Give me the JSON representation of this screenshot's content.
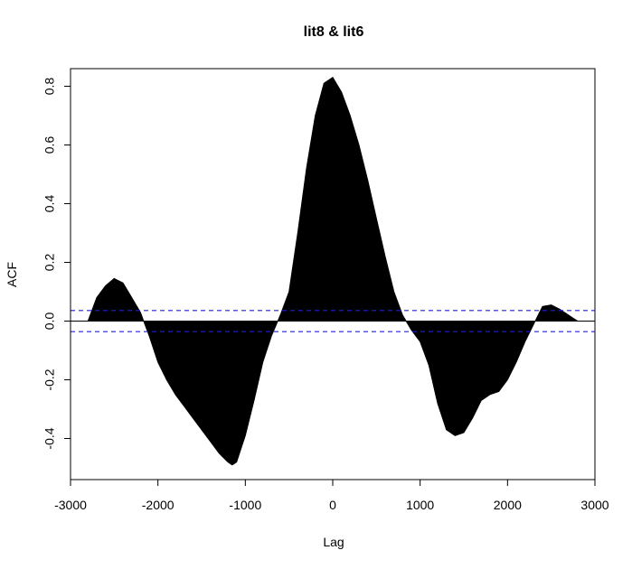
{
  "chart_data": {
    "type": "area",
    "title": "lit8 & lit6",
    "xlabel": "Lag",
    "ylabel": "ACF",
    "xlim": [
      -3000,
      3000
    ],
    "ylim": [
      -0.54,
      0.86
    ],
    "x_ticks": [
      -3000,
      -2000,
      -1000,
      0,
      1000,
      2000,
      3000
    ],
    "x_tick_labels": [
      "-3000",
      "-2000",
      "-1000",
      "0",
      "1000",
      "2000",
      "3000"
    ],
    "y_ticks": [
      -0.4,
      -0.2,
      0.0,
      0.2,
      0.4,
      0.6,
      0.8
    ],
    "y_tick_labels": [
      "-0.4",
      "-0.2",
      "0.0",
      "0.2",
      "0.4",
      "0.6",
      "0.8"
    ],
    "confidence_bounds": [
      0.036,
      -0.036
    ],
    "lag_range": [
      -2800,
      2800
    ],
    "series": [
      {
        "x": [
          -2800,
          -2700,
          -2600,
          -2500,
          -2400,
          -2300,
          -2200,
          -2100,
          -2000,
          -1900,
          -1800,
          -1700,
          -1600,
          -1500,
          -1400,
          -1300,
          -1200,
          -1150,
          -1100,
          -1000,
          -900,
          -800,
          -700,
          -600,
          -500,
          -400,
          -300,
          -200,
          -100,
          0,
          100,
          200,
          300,
          400,
          500,
          600,
          700,
          800,
          900,
          1000,
          1100,
          1200,
          1300,
          1400,
          1500,
          1600,
          1700,
          1800,
          1900,
          2000,
          2100,
          2200,
          2300,
          2400,
          2500,
          2600,
          2700,
          2800
        ],
        "y": [
          0.0,
          0.08,
          0.12,
          0.145,
          0.13,
          0.08,
          0.03,
          -0.05,
          -0.14,
          -0.2,
          -0.25,
          -0.29,
          -0.33,
          -0.37,
          -0.41,
          -0.45,
          -0.48,
          -0.49,
          -0.48,
          -0.39,
          -0.27,
          -0.14,
          -0.05,
          0.02,
          0.1,
          0.3,
          0.52,
          0.7,
          0.81,
          0.83,
          0.78,
          0.7,
          0.6,
          0.48,
          0.35,
          0.22,
          0.1,
          0.02,
          -0.03,
          -0.07,
          -0.15,
          -0.28,
          -0.37,
          -0.39,
          -0.38,
          -0.33,
          -0.27,
          -0.25,
          -0.24,
          -0.2,
          -0.14,
          -0.07,
          -0.01,
          0.05,
          0.055,
          0.04,
          0.02,
          0.0
        ]
      }
    ]
  }
}
